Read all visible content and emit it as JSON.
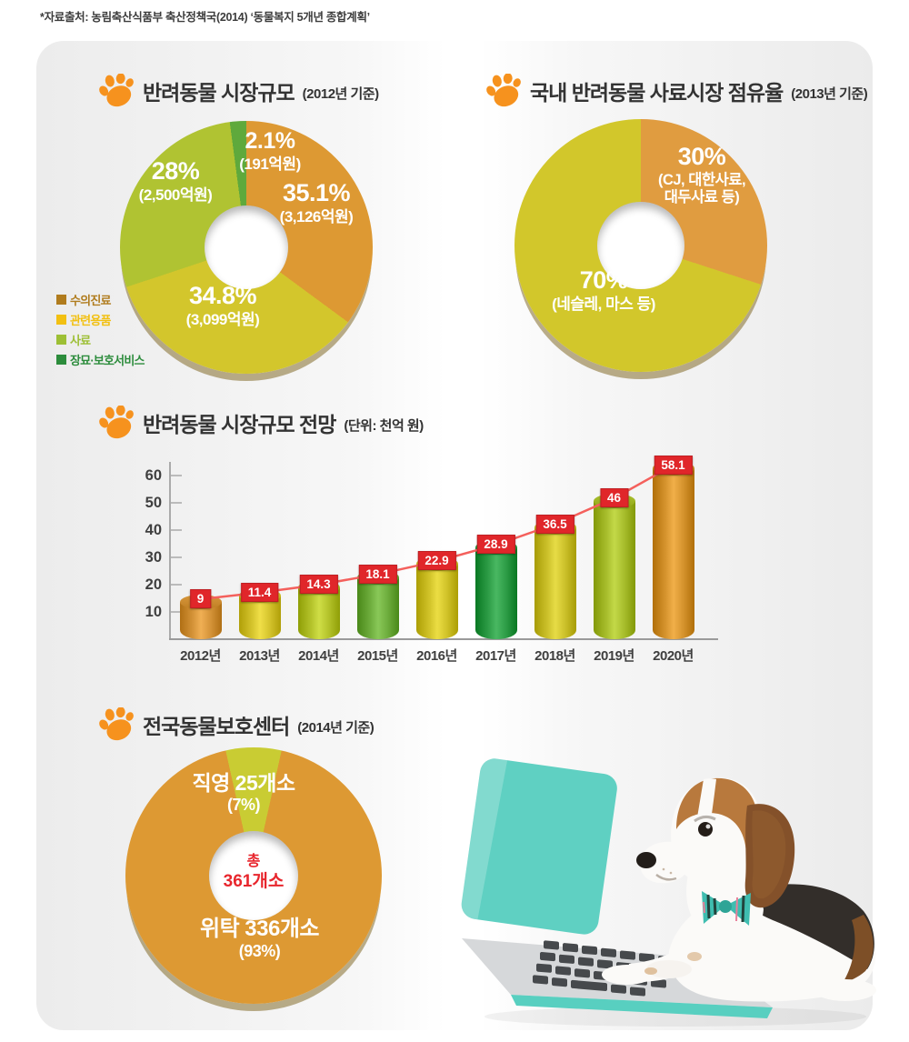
{
  "source_note": "*자료출처: 농림축산식품부 축산정책국(2014) ‘동물복지 5개년 종합계획’",
  "sections": {
    "market_size": {
      "title": "반려동물 시장규모",
      "period": "(2012년 기준)"
    },
    "feed_share": {
      "title": "국내 반려동물 사료시장 점유율",
      "period": "(2013년 기준)"
    },
    "forecast": {
      "title": "반려동물 시장규모 전망",
      "period": "(단위: 천억 원)"
    },
    "shelters": {
      "title": "전국동물보호센터",
      "period": "(2014년 기준)"
    }
  },
  "colors": {
    "paw_orange": "#f6921e",
    "red_label": "#e0262a",
    "trend_line": "#f4605c",
    "center_red": "#e8262d"
  },
  "chart_data": [
    {
      "type": "pie",
      "donut": true,
      "title": "반려동물 시장규모 (2012년 기준)",
      "slices": [
        {
          "label": "수의진료",
          "pct": 35.1,
          "display_pct": "35.1%",
          "display_amount": "(3,126억원)",
          "color": "#dd9933"
        },
        {
          "label": "관련용품",
          "pct": 34.8,
          "display_pct": "34.8%",
          "display_amount": "(3,099억원)",
          "color": "#d3c62c"
        },
        {
          "label": "사료",
          "pct": 28,
          "display_pct": "28%",
          "display_amount": "(2,500억원)",
          "color": "#b0c332"
        },
        {
          "label": "장묘·보호서비스",
          "pct": 2.1,
          "display_pct": "2.1%",
          "display_amount": "(191억원)",
          "color": "#5fa93c"
        }
      ],
      "legend": [
        {
          "label": "수의진료",
          "color": "#b07c1e"
        },
        {
          "label": "관련용품",
          "color": "#f2c012"
        },
        {
          "label": "사료",
          "color": "#9dbf35"
        },
        {
          "label": "장묘·보호서비스",
          "color": "#2c8c3c"
        }
      ]
    },
    {
      "type": "pie",
      "donut": true,
      "title": "국내 반려동물 사료시장 점유율 (2013년 기준)",
      "slices": [
        {
          "label": "CJ, 대한사료, 대두사료 등",
          "pct": 30,
          "display_pct": "30%",
          "sub1": "(CJ, 대한사료,",
          "sub2": "대두사료 등)",
          "color": "#e09c40"
        },
        {
          "label": "네슬레, 마스 등",
          "pct": 70,
          "display_pct": "70%",
          "sub1": "(네슬레, 마스 등)",
          "color": "#d2c72b"
        }
      ]
    },
    {
      "type": "bar",
      "title": "반려동물 시장규모 전망",
      "unit": "천억 원",
      "categories": [
        "2012년",
        "2013년",
        "2014년",
        "2015년",
        "2016년",
        "2017년",
        "2018년",
        "2019년",
        "2020년"
      ],
      "values": [
        9,
        11.4,
        14.3,
        18.1,
        22.9,
        28.9,
        36.5,
        46,
        58.1
      ],
      "value_labels": [
        "9",
        "11.4",
        "14.3",
        "18.1",
        "22.9",
        "28.9",
        "36.5",
        "46",
        "58.1"
      ],
      "bar_colors": [
        "#d6953a",
        "#d6c52e",
        "#b5c42c",
        "#6fae3e",
        "#d2c42a",
        "#2f9e48",
        "#cdc22c",
        "#a9bf2e",
        "#d7952f"
      ],
      "yticks": [
        10,
        20,
        30,
        40,
        50,
        60
      ],
      "ylim": [
        0,
        60
      ],
      "grid": false,
      "trend_line": true
    },
    {
      "type": "pie",
      "donut": true,
      "title": "전국동물보호센터 (2014년 기준)",
      "slices": [
        {
          "label": "직영",
          "count": 25,
          "pct": 7,
          "display": "직영 25개소",
          "display_pct": "(7%)",
          "color": "#c9cc33"
        },
        {
          "label": "위탁",
          "count": 336,
          "pct": 93,
          "display": "위탁 336개소",
          "display_pct": "(93%)",
          "color": "#dd9933"
        }
      ],
      "center": {
        "line1": "총",
        "line2": "361개소"
      }
    }
  ]
}
